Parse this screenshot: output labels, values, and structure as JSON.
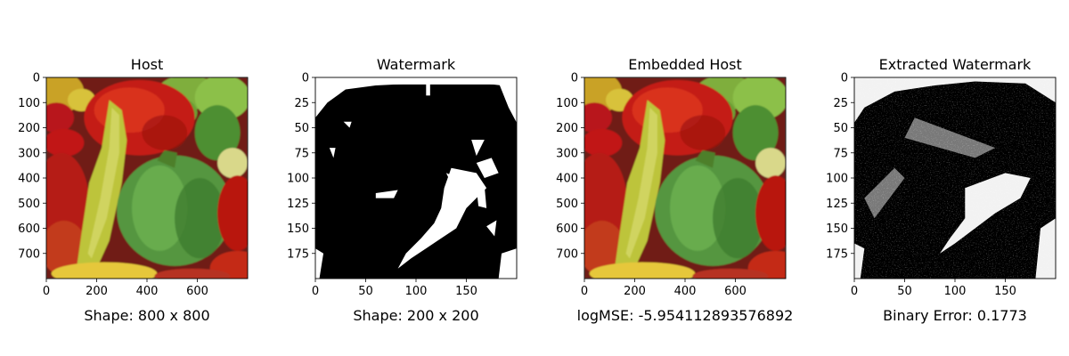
{
  "chart_data": [
    {
      "type": "image",
      "title": "Host",
      "caption": "Shape: 800 x 800",
      "image_kind": "peppers-color",
      "xlim": [
        0,
        800
      ],
      "ylim": [
        800,
        0
      ],
      "xticks": [
        0,
        200,
        400,
        600
      ],
      "yticks": [
        0,
        100,
        200,
        300,
        400,
        500,
        600,
        700
      ]
    },
    {
      "type": "image",
      "title": "Watermark",
      "caption": "Shape: 200 x 200",
      "image_kind": "binary-watermark",
      "xlim": [
        0,
        200
      ],
      "ylim": [
        200,
        0
      ],
      "xticks": [
        0,
        50,
        100,
        150
      ],
      "yticks": [
        0,
        25,
        50,
        75,
        100,
        125,
        150,
        175
      ]
    },
    {
      "type": "image",
      "title": "Embedded Host",
      "caption": "logMSE: -5.954112893576892",
      "image_kind": "peppers-color",
      "xlim": [
        0,
        800
      ],
      "ylim": [
        800,
        0
      ],
      "xticks": [
        0,
        200,
        400,
        600
      ],
      "yticks": [
        0,
        100,
        200,
        300,
        400,
        500,
        600,
        700
      ]
    },
    {
      "type": "image",
      "title": "Extracted Watermark",
      "caption": "Binary Error: 0.1773",
      "image_kind": "binary-watermark-noisy",
      "xlim": [
        0,
        200
      ],
      "ylim": [
        200,
        0
      ],
      "xticks": [
        0,
        50,
        100,
        150
      ],
      "yticks": [
        0,
        25,
        50,
        75,
        100,
        125,
        150,
        175
      ]
    }
  ]
}
